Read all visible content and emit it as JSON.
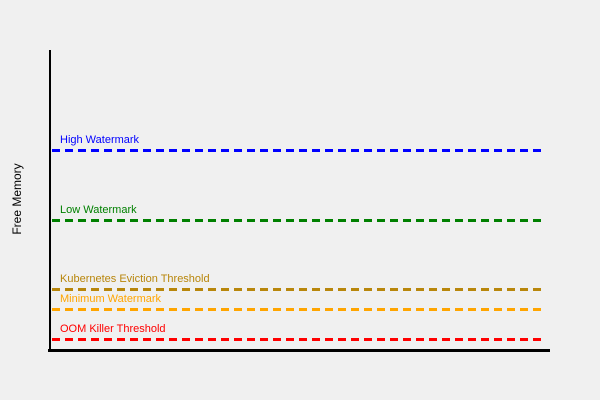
{
  "chart_data": {
    "type": "line",
    "title": "",
    "xlabel": "",
    "ylabel": "Free Memory",
    "background_color": "#f0f0f0",
    "axis_color": "#000000",
    "grid": false,
    "x_ticks": [],
    "y_ticks": [],
    "line_style": "dashed",
    "thresholds": [
      {
        "label": "High Watermark",
        "color": "#0000ff",
        "level_fraction": 0.67
      },
      {
        "label": "Low Watermark",
        "color": "#008000",
        "level_fraction": 0.43
      },
      {
        "label": "Kubernetes Eviction Threshold",
        "color": "#b8860b",
        "level_fraction": 0.2
      },
      {
        "label": "Minimum Watermark",
        "color": "#ffa500",
        "level_fraction": 0.14
      },
      {
        "label": "OOM Killer Threshold",
        "color": "#ff0000",
        "level_fraction": 0.04
      }
    ]
  }
}
